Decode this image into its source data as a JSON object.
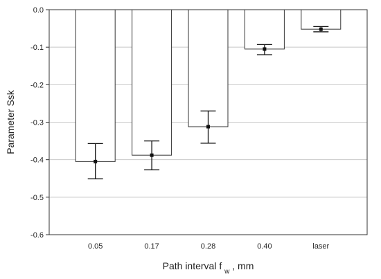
{
  "chart_data": {
    "type": "bar",
    "categories": [
      "0.05",
      "0.17",
      "0.28",
      "0.40",
      "laser"
    ],
    "values": [
      -0.405,
      -0.388,
      -0.312,
      -0.105,
      -0.052
    ],
    "error_bars": {
      "upper": [
        -0.357,
        -0.35,
        -0.27,
        -0.093,
        -0.045
      ],
      "lower": [
        -0.451,
        -0.427,
        -0.356,
        -0.12,
        -0.059
      ]
    },
    "ylim": [
      -0.6,
      0.0
    ],
    "yticks": [
      "0.0",
      "-0.1",
      "-0.2",
      "-0.3",
      "-0.4",
      "-0.5",
      "-0.6"
    ],
    "ylabel": "Parameter Ssk",
    "xlabel": {
      "main": "Path interval f",
      "subscript": "w",
      "suffix": ", mm"
    },
    "grid": true
  }
}
